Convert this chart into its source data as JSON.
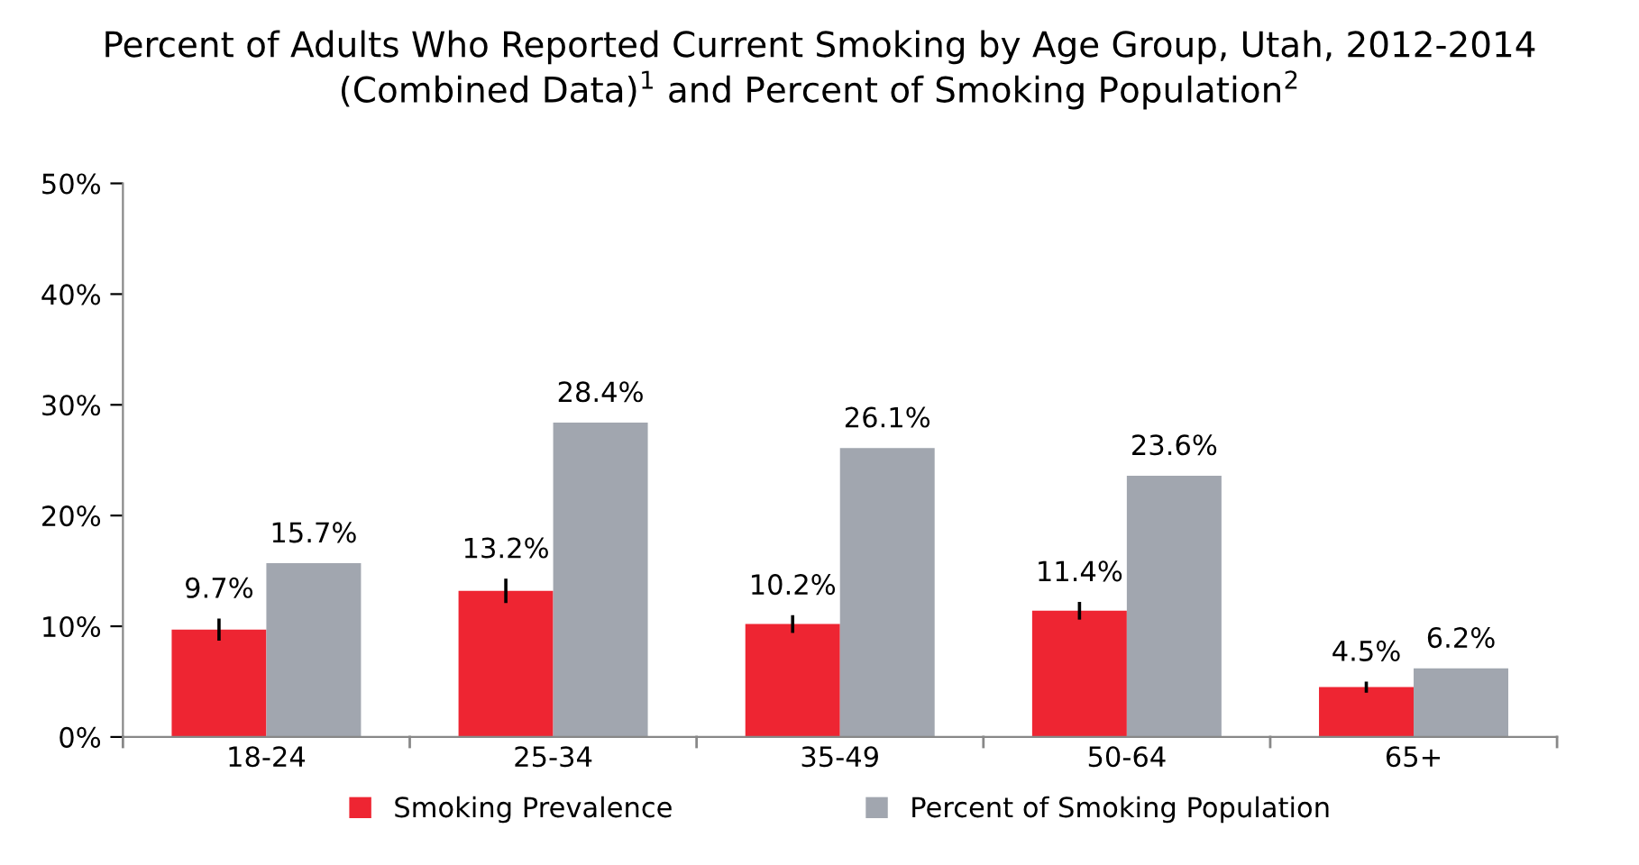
{
  "chart_data": {
    "type": "bar",
    "title": "Percent of Adults Who Reported Current Smoking by Age Group, Utah, 2012-2014\n(Combined Data)$^{1}$ and Percent of Smoking Population$^{2}$",
    "categories": [
      "18-24",
      "25-34",
      "35-49",
      "50-64",
      "65+"
    ],
    "series": [
      {
        "name": "Smoking Prevalence",
        "color": "#ee2532",
        "values": [
          9.7,
          13.2,
          10.2,
          11.4,
          4.5
        ],
        "errors": [
          1.0,
          1.1,
          0.8,
          0.8,
          0.5
        ],
        "value_labels": [
          "9.7%",
          "13.2%",
          "10.2%",
          "11.4%",
          "4.5%"
        ]
      },
      {
        "name": "Percent of Smoking Population",
        "color": "#a1a6af",
        "values": [
          15.7,
          28.4,
          26.1,
          23.6,
          6.2
        ],
        "value_labels": [
          "15.7%",
          "28.4%",
          "26.1%",
          "23.6%",
          "6.2%"
        ]
      }
    ],
    "ylim": [
      0,
      50
    ],
    "yticks": [
      {
        "value": 0,
        "label": "0%"
      },
      {
        "value": 10,
        "label": "10%"
      },
      {
        "value": 20,
        "label": "20%"
      },
      {
        "value": 30,
        "label": "30%"
      },
      {
        "value": 40,
        "label": "40%"
      },
      {
        "value": 50,
        "label": "50%"
      }
    ],
    "grid": false,
    "legend": "bottom"
  }
}
